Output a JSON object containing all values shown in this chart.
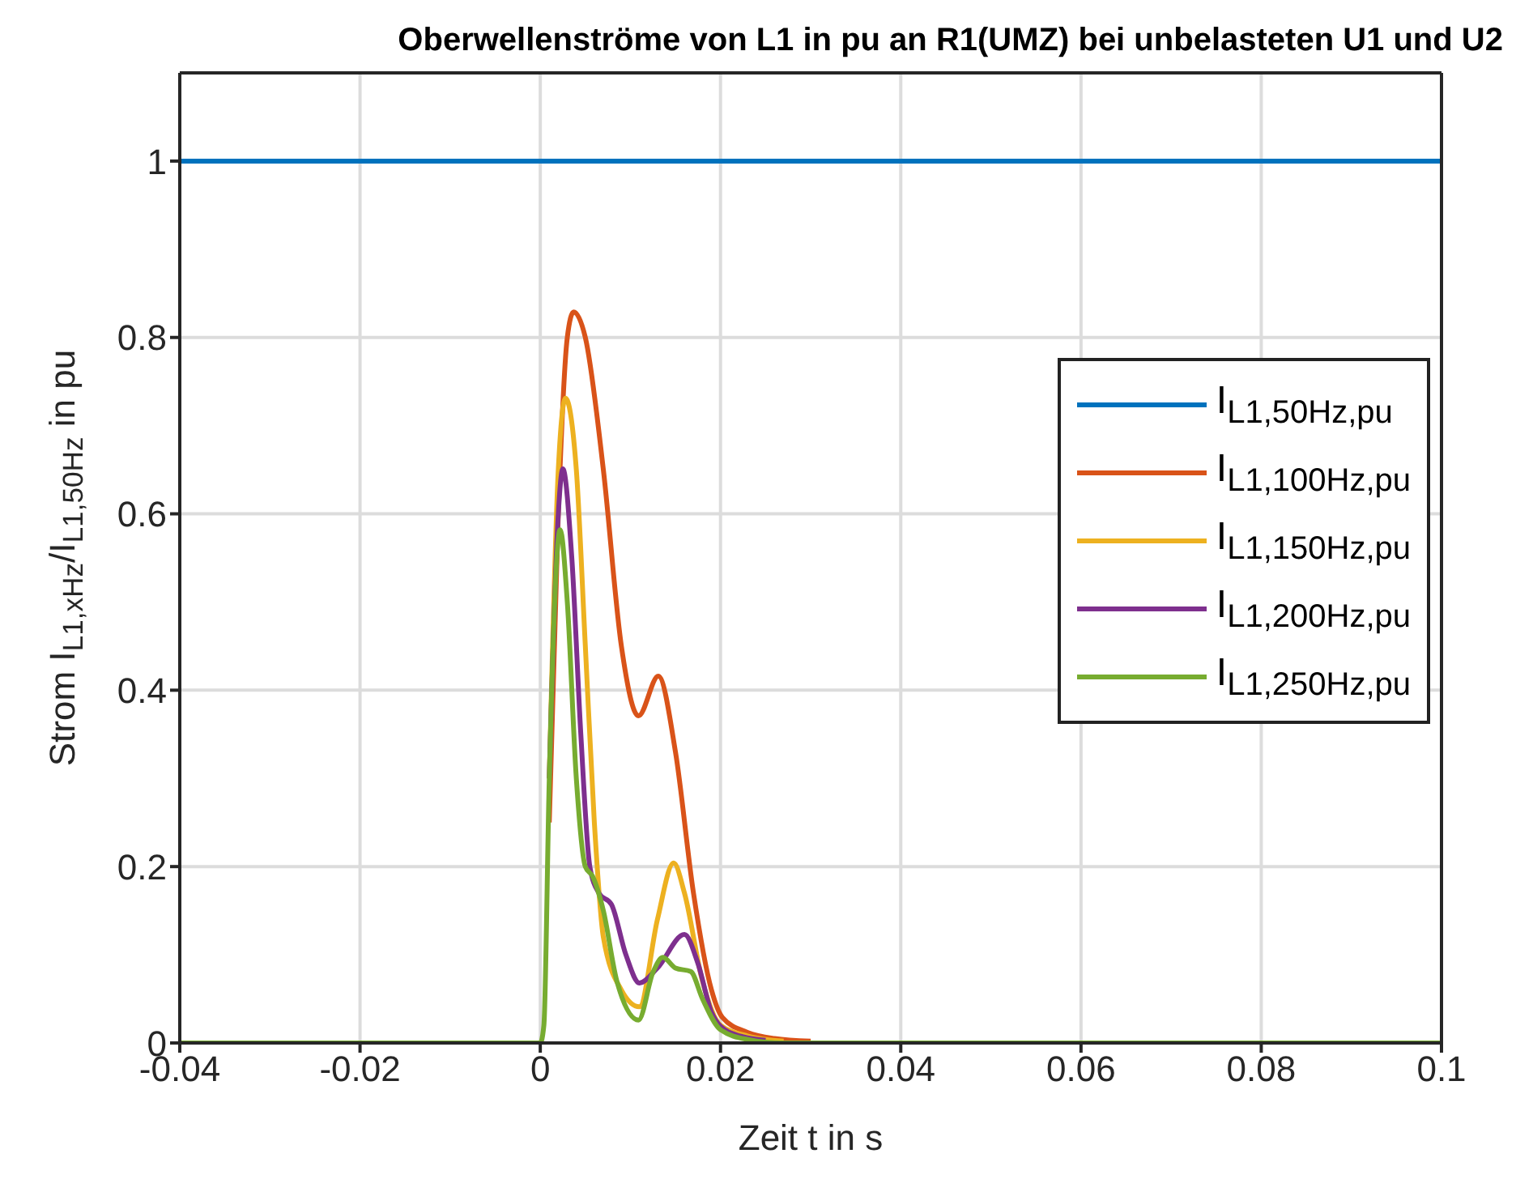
{
  "chart_data": {
    "type": "line",
    "title": "Oberwellenströme von L1 in pu an R1(UMZ) bei unbelasteten U1 und U2",
    "xlabel": "Zeit t in s",
    "ylabel": "Strom I$_{L1,xHz}$/I$_{L1,50Hz}$ in pu",
    "xlim": [
      -0.04,
      0.1
    ],
    "xticks": [
      -0.04,
      -0.02,
      0,
      0.02,
      0.04,
      0.06,
      0.08,
      0.1
    ],
    "ylim": [
      0,
      1.1
    ],
    "yticks": [
      0,
      0.2,
      0.4,
      0.6,
      0.8,
      1
    ],
    "grid": true,
    "legend": "right",
    "marker": "none",
    "line_style": "solid",
    "series": [
      {
        "name": "I$_{L1,50Hz,pu}$",
        "color": "#0072bd",
        "x": [
          -0.04,
          0.1
        ],
        "values": [
          1,
          1
        ]
      },
      {
        "name": "I$_{L1,100Hz,pu}$",
        "color": "#d95319",
        "x": [
          0.001,
          0.002,
          0.003,
          0.0037,
          0.005,
          0.007,
          0.009,
          0.0109,
          0.0131,
          0.015,
          0.017,
          0.019,
          0.0202,
          0.023,
          0.026,
          0.03
        ],
        "values": [
          0.25,
          0.6,
          0.8,
          0.829,
          0.8,
          0.65,
          0.45,
          0.371,
          0.416,
          0.33,
          0.17,
          0.06,
          0.029,
          0.012,
          0.005,
          0.002
        ]
      },
      {
        "name": "I$_{L1,150Hz,pu}$",
        "color": "#edb120",
        "x": [
          0.001,
          0.002,
          0.0028,
          0.004,
          0.005,
          0.006,
          0.007,
          0.009,
          0.011,
          0.013,
          0.0148,
          0.016,
          0.018,
          0.02,
          0.023,
          0.027
        ],
        "values": [
          0.3,
          0.65,
          0.731,
          0.65,
          0.45,
          0.25,
          0.12,
          0.06,
          0.041,
          0.14,
          0.204,
          0.17,
          0.07,
          0.02,
          0.008,
          0.002
        ]
      },
      {
        "name": "I$_{L1,200Hz,pu}$",
        "color": "#7e2f8e",
        "x": [
          0.001,
          0.002,
          0.0025,
          0.0035,
          0.0045,
          0.0055,
          0.0065,
          0.0079,
          0.0095,
          0.011,
          0.013,
          0.016,
          0.0175,
          0.019,
          0.021,
          0.025
        ],
        "values": [
          0.3,
          0.6,
          0.651,
          0.55,
          0.35,
          0.2,
          0.17,
          0.157,
          0.1,
          0.068,
          0.085,
          0.123,
          0.09,
          0.035,
          0.012,
          0.003
        ]
      },
      {
        "name": "I$_{L1,250Hz,pu}$",
        "color": "#77ac30",
        "x": [
          -0.04,
          0,
          0.0004,
          0.001,
          0.0022,
          0.003,
          0.004,
          0.005,
          0.0058,
          0.007,
          0.0085,
          0.0109,
          0.0125,
          0.0136,
          0.015,
          0.0167,
          0.018,
          0.02,
          0.023,
          0.027,
          0.1
        ],
        "values": [
          0,
          0,
          0.02,
          0.3,
          0.582,
          0.5,
          0.3,
          0.2,
          0.189,
          0.15,
          0.07,
          0.026,
          0.08,
          0.097,
          0.085,
          0.081,
          0.05,
          0.015,
          0.004,
          0,
          0
        ]
      }
    ]
  }
}
